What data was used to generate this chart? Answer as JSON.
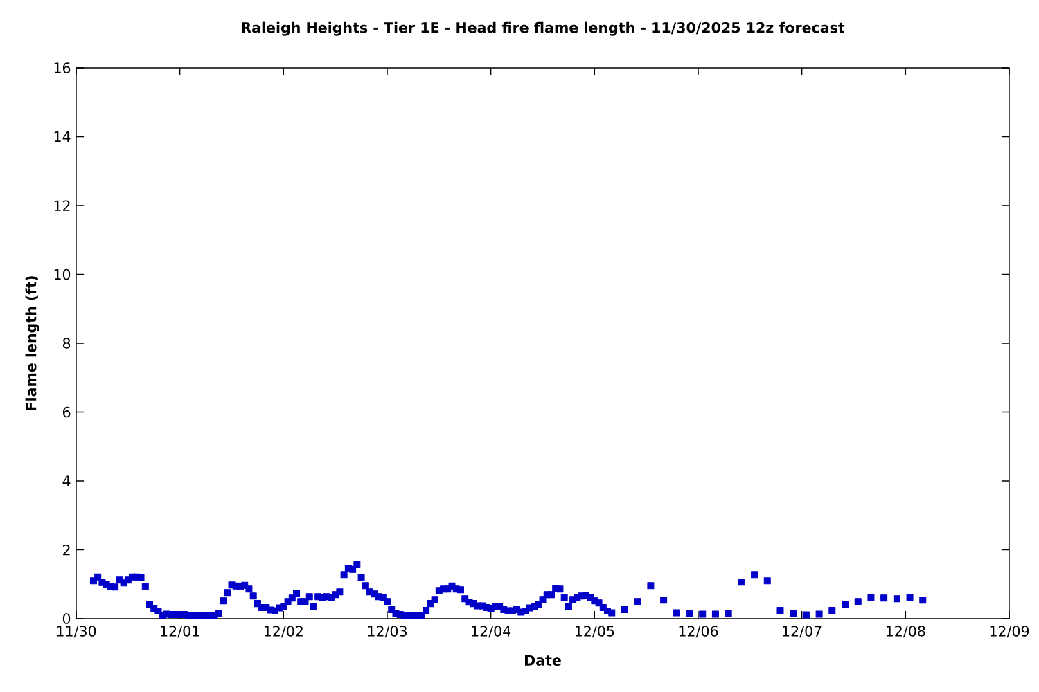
{
  "chart_data": {
    "type": "scatter",
    "title": "Raleigh Heights - Tier 1E - Head fire flame length - 11/30/2025 12z forecast",
    "xlabel": "Date",
    "ylabel": "Flame length (ft)",
    "x": [
      "2025-11-30T04:00",
      "2025-11-30T05:00",
      "2025-11-30T06:00",
      "2025-11-30T07:00",
      "2025-11-30T08:00",
      "2025-11-30T09:00",
      "2025-11-30T10:00",
      "2025-11-30T11:00",
      "2025-11-30T12:00",
      "2025-11-30T13:00",
      "2025-11-30T14:00",
      "2025-11-30T15:00",
      "2025-11-30T16:00",
      "2025-11-30T17:00",
      "2025-11-30T18:00",
      "2025-11-30T19:00",
      "2025-11-30T20:00",
      "2025-11-30T21:00",
      "2025-11-30T22:00",
      "2025-11-30T23:00",
      "2025-12-01T00:00",
      "2025-12-01T01:00",
      "2025-12-01T02:00",
      "2025-12-01T03:00",
      "2025-12-01T04:00",
      "2025-12-01T05:00",
      "2025-12-01T06:00",
      "2025-12-01T07:00",
      "2025-12-01T08:00",
      "2025-12-01T09:00",
      "2025-12-01T10:00",
      "2025-12-01T11:00",
      "2025-12-01T12:00",
      "2025-12-01T13:00",
      "2025-12-01T14:00",
      "2025-12-01T15:00",
      "2025-12-01T16:00",
      "2025-12-01T17:00",
      "2025-12-01T18:00",
      "2025-12-01T19:00",
      "2025-12-01T20:00",
      "2025-12-01T21:00",
      "2025-12-01T22:00",
      "2025-12-01T23:00",
      "2025-12-02T00:00",
      "2025-12-02T01:00",
      "2025-12-02T02:00",
      "2025-12-02T03:00",
      "2025-12-02T04:00",
      "2025-12-02T05:00",
      "2025-12-02T06:00",
      "2025-12-02T07:00",
      "2025-12-02T08:00",
      "2025-12-02T09:00",
      "2025-12-02T10:00",
      "2025-12-02T11:00",
      "2025-12-02T12:00",
      "2025-12-02T13:00",
      "2025-12-02T14:00",
      "2025-12-02T15:00",
      "2025-12-02T16:00",
      "2025-12-02T17:00",
      "2025-12-02T18:00",
      "2025-12-02T19:00",
      "2025-12-02T20:00",
      "2025-12-02T21:00",
      "2025-12-02T22:00",
      "2025-12-02T23:00",
      "2025-12-03T00:00",
      "2025-12-03T01:00",
      "2025-12-03T02:00",
      "2025-12-03T03:00",
      "2025-12-03T04:00",
      "2025-12-03T05:00",
      "2025-12-03T06:00",
      "2025-12-03T07:00",
      "2025-12-03T08:00",
      "2025-12-03T09:00",
      "2025-12-03T10:00",
      "2025-12-03T11:00",
      "2025-12-03T12:00",
      "2025-12-03T13:00",
      "2025-12-03T14:00",
      "2025-12-03T15:00",
      "2025-12-03T16:00",
      "2025-12-03T17:00",
      "2025-12-03T18:00",
      "2025-12-03T19:00",
      "2025-12-03T20:00",
      "2025-12-03T21:00",
      "2025-12-03T22:00",
      "2025-12-03T23:00",
      "2025-12-04T00:00",
      "2025-12-04T01:00",
      "2025-12-04T02:00",
      "2025-12-04T03:00",
      "2025-12-04T04:00",
      "2025-12-04T05:00",
      "2025-12-04T06:00",
      "2025-12-04T07:00",
      "2025-12-04T08:00",
      "2025-12-04T09:00",
      "2025-12-04T10:00",
      "2025-12-04T11:00",
      "2025-12-04T12:00",
      "2025-12-04T13:00",
      "2025-12-04T14:00",
      "2025-12-04T15:00",
      "2025-12-04T16:00",
      "2025-12-04T17:00",
      "2025-12-04T18:00",
      "2025-12-04T19:00",
      "2025-12-04T20:00",
      "2025-12-04T21:00",
      "2025-12-04T22:00",
      "2025-12-04T23:00",
      "2025-12-05T00:00",
      "2025-12-05T01:00",
      "2025-12-05T02:00",
      "2025-12-05T03:00",
      "2025-12-05T04:00",
      "2025-12-05T07:00",
      "2025-12-05T10:00",
      "2025-12-05T13:00",
      "2025-12-05T16:00",
      "2025-12-05T19:00",
      "2025-12-05T22:00",
      "2025-12-06T01:00",
      "2025-12-06T04:00",
      "2025-12-06T07:00",
      "2025-12-06T10:00",
      "2025-12-06T13:00",
      "2025-12-06T16:00",
      "2025-12-06T19:00",
      "2025-12-06T22:00",
      "2025-12-07T01:00",
      "2025-12-07T04:00",
      "2025-12-07T07:00",
      "2025-12-07T10:00",
      "2025-12-07T13:00",
      "2025-12-07T16:00",
      "2025-12-07T19:00",
      "2025-12-07T22:00",
      "2025-12-08T01:00",
      "2025-12-08T04:00"
    ],
    "values": [
      1.1,
      1.21,
      1.05,
      1.0,
      0.93,
      0.92,
      1.12,
      1.04,
      1.12,
      1.21,
      1.21,
      1.19,
      0.94,
      0.42,
      0.3,
      0.22,
      0.09,
      0.13,
      0.12,
      0.12,
      0.12,
      0.12,
      0.09,
      0.08,
      0.09,
      0.09,
      0.09,
      0.08,
      0.09,
      0.16,
      0.52,
      0.76,
      0.98,
      0.95,
      0.94,
      0.97,
      0.86,
      0.66,
      0.44,
      0.32,
      0.32,
      0.25,
      0.23,
      0.31,
      0.34,
      0.5,
      0.6,
      0.74,
      0.5,
      0.5,
      0.64,
      0.36,
      0.64,
      0.62,
      0.64,
      0.62,
      0.7,
      0.78,
      1.28,
      1.46,
      1.43,
      1.57,
      1.2,
      0.96,
      0.78,
      0.72,
      0.64,
      0.62,
      0.5,
      0.26,
      0.16,
      0.12,
      0.09,
      0.09,
      0.1,
      0.09,
      0.09,
      0.24,
      0.44,
      0.56,
      0.82,
      0.86,
      0.86,
      0.95,
      0.86,
      0.84,
      0.58,
      0.48,
      0.44,
      0.37,
      0.37,
      0.32,
      0.3,
      0.36,
      0.36,
      0.26,
      0.23,
      0.23,
      0.26,
      0.19,
      0.22,
      0.31,
      0.36,
      0.42,
      0.56,
      0.7,
      0.7,
      0.88,
      0.86,
      0.62,
      0.36,
      0.56,
      0.62,
      0.66,
      0.68,
      0.62,
      0.52,
      0.46,
      0.32,
      0.22,
      0.17,
      0.26,
      0.5,
      0.96,
      0.54,
      0.17,
      0.15,
      0.13,
      0.13,
      0.15,
      1.06,
      1.28,
      1.1,
      0.24,
      0.15,
      0.11,
      0.13,
      0.24,
      0.4,
      0.5,
      0.62,
      0.6,
      0.58,
      0.62,
      0.54
    ],
    "color": "#0000c8",
    "marker": "square",
    "xlim": [
      "2025-11-30",
      "2025-12-09"
    ],
    "xticks": [
      {
        "value": "2025-11-30",
        "label": "11/30"
      },
      {
        "value": "2025-12-01",
        "label": "12/01"
      },
      {
        "value": "2025-12-02",
        "label": "12/02"
      },
      {
        "value": "2025-12-03",
        "label": "12/03"
      },
      {
        "value": "2025-12-04",
        "label": "12/04"
      },
      {
        "value": "2025-12-05",
        "label": "12/05"
      },
      {
        "value": "2025-12-06",
        "label": "12/06"
      },
      {
        "value": "2025-12-07",
        "label": "12/07"
      },
      {
        "value": "2025-12-08",
        "label": "12/08"
      },
      {
        "value": "2025-12-09",
        "label": "12/09"
      }
    ],
    "ylim": [
      0,
      16
    ],
    "yticks": [
      0,
      2,
      4,
      6,
      8,
      10,
      12,
      14,
      16
    ]
  }
}
